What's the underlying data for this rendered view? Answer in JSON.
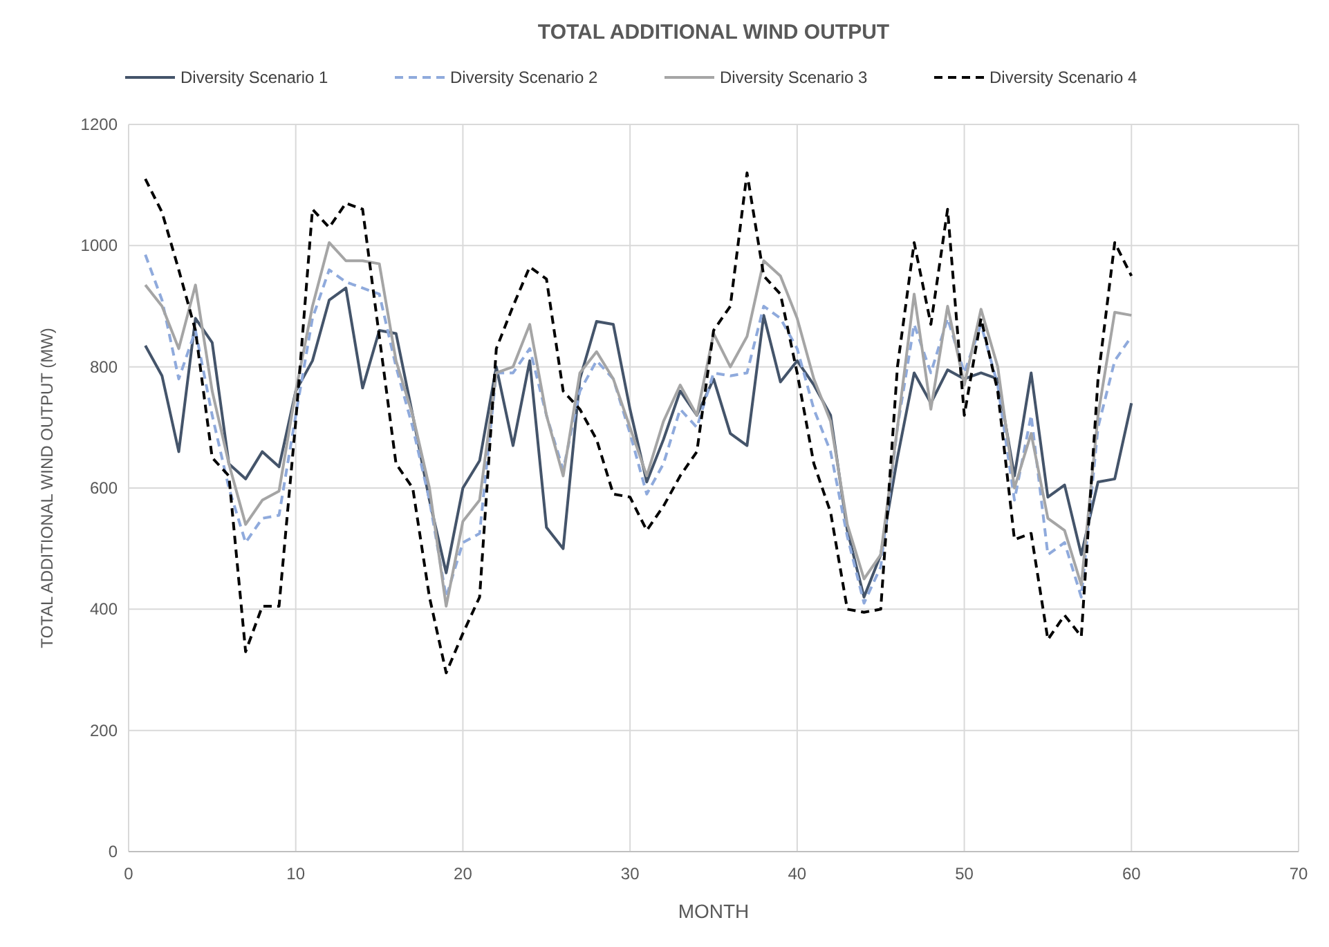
{
  "chart_data": {
    "type": "line",
    "title": "TOTAL ADDITIONAL WIND OUTPUT",
    "xlabel": "MONTH",
    "ylabel": "TOTAL ADDITIONAL WIND OUTPUT (MW)",
    "x": [
      1,
      2,
      3,
      4,
      5,
      6,
      7,
      8,
      9,
      10,
      11,
      12,
      13,
      14,
      15,
      16,
      17,
      18,
      19,
      20,
      21,
      22,
      23,
      24,
      25,
      26,
      27,
      28,
      29,
      30,
      31,
      32,
      33,
      34,
      35,
      36,
      37,
      38,
      39,
      40,
      41,
      42,
      43,
      44,
      45,
      46,
      47,
      48,
      49,
      50,
      51,
      52,
      53,
      54,
      55,
      56,
      57,
      58,
      59,
      60
    ],
    "xlim": [
      0,
      70
    ],
    "xticks": [
      0,
      10,
      20,
      30,
      40,
      50,
      60,
      70
    ],
    "ylim": [
      0,
      1200
    ],
    "yticks": [
      0,
      200,
      400,
      600,
      800,
      1000,
      1200
    ],
    "grid": true,
    "legend": "top",
    "series": [
      {
        "name": "Diversity Scenario 1",
        "color": "#44546a",
        "line_style": "solid",
        "values": [
          835,
          785,
          660,
          880,
          840,
          640,
          615,
          660,
          635,
          760,
          810,
          910,
          930,
          765,
          860,
          855,
          720,
          580,
          460,
          600,
          645,
          800,
          670,
          810,
          535,
          500,
          780,
          875,
          870,
          730,
          610,
          680,
          760,
          720,
          780,
          690,
          670,
          885,
          775,
          810,
          770,
          720,
          530,
          420,
          490,
          650,
          790,
          740,
          795,
          780,
          790,
          780,
          620,
          790,
          585,
          605,
          490,
          610,
          615,
          740
        ]
      },
      {
        "name": "Diversity Scenario 2",
        "color": "#8faadc",
        "line_style": "dashed",
        "values": [
          985,
          910,
          780,
          860,
          720,
          600,
          510,
          550,
          555,
          720,
          880,
          960,
          940,
          930,
          920,
          800,
          700,
          580,
          420,
          510,
          525,
          790,
          790,
          830,
          720,
          630,
          760,
          810,
          780,
          690,
          590,
          640,
          730,
          700,
          790,
          785,
          790,
          900,
          880,
          830,
          730,
          660,
          520,
          410,
          470,
          700,
          870,
          790,
          880,
          790,
          870,
          770,
          580,
          720,
          490,
          510,
          420,
          700,
          810,
          850
        ]
      },
      {
        "name": "Diversity Scenario 3",
        "color": "#a5a5a5",
        "line_style": "solid",
        "values": [
          935,
          900,
          830,
          935,
          760,
          640,
          540,
          580,
          595,
          760,
          900,
          1005,
          975,
          975,
          970,
          810,
          720,
          600,
          405,
          545,
          580,
          790,
          800,
          870,
          720,
          620,
          790,
          825,
          780,
          700,
          620,
          710,
          770,
          720,
          855,
          800,
          850,
          975,
          950,
          880,
          780,
          710,
          540,
          450,
          490,
          700,
          920,
          730,
          900,
          770,
          895,
          800,
          600,
          690,
          550,
          530,
          440,
          720,
          890,
          885
        ]
      },
      {
        "name": "Diversity Scenario 4",
        "color": "#000000",
        "line_style": "dashed",
        "values": [
          1110,
          1055,
          960,
          860,
          650,
          620,
          330,
          405,
          405,
          710,
          1060,
          1030,
          1070,
          1060,
          850,
          640,
          600,
          420,
          295,
          360,
          420,
          830,
          900,
          965,
          945,
          760,
          730,
          680,
          590,
          585,
          530,
          570,
          620,
          660,
          860,
          900,
          1120,
          950,
          920,
          790,
          640,
          560,
          400,
          395,
          400,
          800,
          1005,
          870,
          1060,
          720,
          880,
          760,
          515,
          525,
          350,
          390,
          355,
          780,
          1005,
          950
        ]
      }
    ]
  }
}
